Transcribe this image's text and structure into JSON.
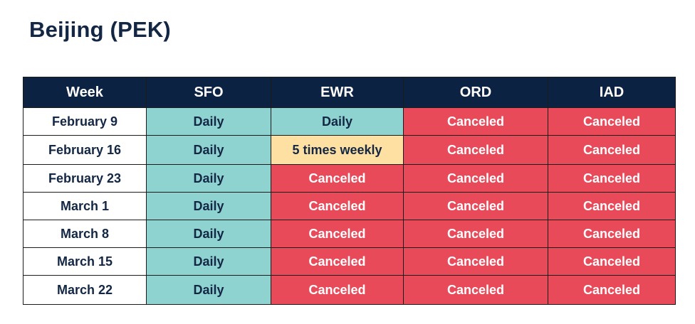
{
  "title": "Beijing (PEK)",
  "columns": [
    "Week",
    "SFO",
    "EWR",
    "ORD",
    "IAD"
  ],
  "rows": [
    {
      "week": "February 9",
      "cells": [
        "Daily",
        "Daily",
        "Canceled",
        "Canceled"
      ]
    },
    {
      "week": "February 16",
      "cells": [
        "Daily",
        "5 times weekly",
        "Canceled",
        "Canceled"
      ]
    },
    {
      "week": "February 23",
      "cells": [
        "Daily",
        "Canceled",
        "Canceled",
        "Canceled"
      ]
    },
    {
      "week": "March 1",
      "cells": [
        "Daily",
        "Canceled",
        "Canceled",
        "Canceled"
      ]
    },
    {
      "week": "March 8",
      "cells": [
        "Daily",
        "Canceled",
        "Canceled",
        "Canceled"
      ]
    },
    {
      "week": "March 15",
      "cells": [
        "Daily",
        "Canceled",
        "Canceled",
        "Canceled"
      ]
    },
    {
      "week": "March 22",
      "cells": [
        "Daily",
        "Canceled",
        "Canceled",
        "Canceled"
      ]
    }
  ],
  "status_colors": {
    "Daily": "#8fd3d1",
    "5 times weekly": "#fde0a2",
    "Canceled": "#e84a5a"
  },
  "header_color": "#0c2243"
}
